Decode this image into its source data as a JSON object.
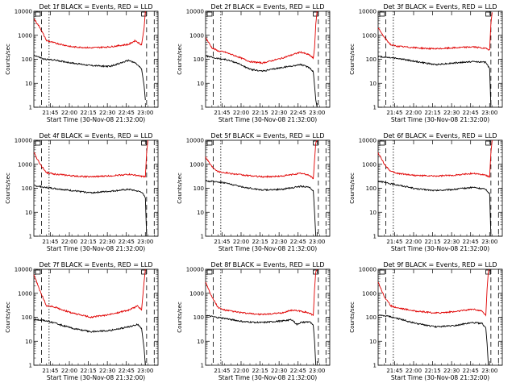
{
  "chart_data": [
    {
      "type": "line",
      "title": "Det 1f BLACK = Events, RED = LLD",
      "xlabel": "Start Time (30-Nov-08 21:32:00)",
      "ylabel": "Counts/sec",
      "y_scale": "log",
      "ylim": [
        1,
        10000
      ],
      "y_ticklabels": [
        "1",
        "10",
        "100",
        "1000",
        "10000"
      ],
      "x_ticklabels": [
        "21:45",
        "22:00",
        "22:15",
        "22:30",
        "22:45",
        "23:00"
      ],
      "colors": {
        "events": "#000000",
        "lld": "#e00000"
      },
      "series": [
        {
          "key": "events",
          "x_minutes": [
            0,
            8,
            15,
            30,
            45,
            60,
            75,
            80,
            85,
            87,
            88
          ],
          "values": [
            150,
            100,
            95,
            70,
            55,
            50,
            90,
            70,
            40,
            8,
            2
          ]
        },
        {
          "key": "lld",
          "x_minutes": [
            0,
            5,
            10,
            15,
            30,
            45,
            60,
            75,
            80,
            85,
            87,
            88
          ],
          "values": [
            5000,
            2000,
            600,
            500,
            330,
            300,
            330,
            420,
            600,
            400,
            2000,
            10000
          ]
        }
      ]
    },
    {
      "type": "line",
      "title": "Det 2f BLACK = Events, RED = LLD",
      "xlabel": "Start Time (30-Nov-08 21:32:00)",
      "ylabel": "Counts/sec",
      "y_scale": "log",
      "ylim": [
        1,
        10000
      ],
      "y_ticklabels": [
        "1",
        "10",
        "100",
        "1000",
        "10000"
      ],
      "x_ticklabels": [
        "21:45",
        "22:00",
        "22:15",
        "22:30",
        "22:45",
        "23:00"
      ],
      "colors": {
        "events": "#000000",
        "lld": "#e00000"
      },
      "series": [
        {
          "key": "events",
          "x_minutes": [
            0,
            8,
            15,
            25,
            35,
            45,
            60,
            75,
            82,
            85,
            86,
            87,
            88
          ],
          "values": [
            140,
            110,
            100,
            70,
            38,
            32,
            45,
            60,
            45,
            30,
            8,
            2,
            1
          ]
        },
        {
          "key": "lld",
          "x_minutes": [
            0,
            5,
            10,
            15,
            25,
            35,
            45,
            60,
            75,
            82,
            85,
            86,
            87,
            88
          ],
          "values": [
            800,
            300,
            220,
            200,
            130,
            80,
            70,
            110,
            200,
            150,
            110,
            300,
            3000,
            10000
          ]
        }
      ]
    },
    {
      "type": "line",
      "title": "Det 3f BLACK = Events, RED = LLD",
      "xlabel": "Start Time (30-Nov-08 21:32:00)",
      "ylabel": "Counts/sec",
      "y_scale": "log",
      "ylim": [
        1,
        10000
      ],
      "y_ticklabels": [
        "1",
        "10",
        "100",
        "1000",
        "10000"
      ],
      "x_ticklabels": [
        "21:45",
        "22:00",
        "22:15",
        "22:30",
        "22:45",
        "23:00"
      ],
      "colors": {
        "events": "#000000",
        "lld": "#e00000"
      },
      "series": [
        {
          "key": "events",
          "x_minutes": [
            0,
            8,
            15,
            30,
            45,
            60,
            75,
            85,
            88,
            89
          ],
          "values": [
            130,
            120,
            110,
            80,
            60,
            70,
            80,
            75,
            40,
            1
          ]
        },
        {
          "key": "lld",
          "x_minutes": [
            0,
            5,
            10,
            15,
            30,
            45,
            60,
            75,
            85,
            88,
            89,
            90
          ],
          "values": [
            2000,
            800,
            400,
            350,
            300,
            270,
            300,
            330,
            280,
            250,
            3000,
            9000
          ]
        }
      ]
    },
    {
      "type": "line",
      "title": "Det 4f BLACK = Events, RED = LLD",
      "xlabel": "Start Time (30-Nov-08 21:32:00)",
      "ylabel": "Counts/sec",
      "y_scale": "log",
      "ylim": [
        1,
        10000
      ],
      "y_ticklabels": [
        "1",
        "10",
        "100",
        "1000",
        "10000"
      ],
      "x_ticklabels": [
        "21:45",
        "22:00",
        "22:15",
        "22:30",
        "22:45",
        "23:00"
      ],
      "colors": {
        "events": "#000000",
        "lld": "#e00000"
      },
      "series": [
        {
          "key": "events",
          "x_minutes": [
            0,
            8,
            15,
            30,
            45,
            60,
            75,
            85,
            88,
            89
          ],
          "values": [
            130,
            110,
            100,
            80,
            65,
            75,
            90,
            70,
            40,
            1
          ]
        },
        {
          "key": "lld",
          "x_minutes": [
            0,
            5,
            10,
            15,
            30,
            45,
            60,
            75,
            85,
            88,
            89,
            90
          ],
          "values": [
            3000,
            1000,
            450,
            400,
            330,
            300,
            330,
            380,
            320,
            300,
            3000,
            10000
          ]
        }
      ]
    },
    {
      "type": "line",
      "title": "Det 5f BLACK = Events, RED = LLD",
      "xlabel": "Start Time (30-Nov-08 21:32:00)",
      "ylabel": "Counts/sec",
      "y_scale": "log",
      "ylim": [
        1,
        10000
      ],
      "y_ticklabels": [
        "1",
        "10",
        "100",
        "1000",
        "10000"
      ],
      "x_ticklabels": [
        "21:45",
        "22:00",
        "22:15",
        "22:30",
        "22:45",
        "23:00"
      ],
      "colors": {
        "events": "#000000",
        "lld": "#e00000"
      },
      "series": [
        {
          "key": "events",
          "x_minutes": [
            0,
            8,
            15,
            30,
            45,
            60,
            75,
            82,
            85,
            86,
            87
          ],
          "values": [
            200,
            190,
            170,
            110,
            85,
            90,
            120,
            110,
            80,
            10,
            1
          ]
        },
        {
          "key": "lld",
          "x_minutes": [
            0,
            5,
            10,
            15,
            30,
            45,
            60,
            75,
            82,
            85,
            86,
            87,
            88
          ],
          "values": [
            2000,
            800,
            500,
            450,
            350,
            300,
            320,
            420,
            350,
            250,
            1500,
            8000,
            10000
          ]
        }
      ]
    },
    {
      "type": "line",
      "title": "Det 6f BLACK = Events, RED = LLD",
      "xlabel": "Start Time (30-Nov-08 21:32:00)",
      "ylabel": "Counts/sec",
      "y_scale": "log",
      "ylim": [
        1,
        10000
      ],
      "y_ticklabels": [
        "1",
        "10",
        "100",
        "1000",
        "10000"
      ],
      "x_ticklabels": [
        "21:45",
        "22:00",
        "22:15",
        "22:30",
        "22:45",
        "23:00"
      ],
      "colors": {
        "events": "#000000",
        "lld": "#e00000"
      },
      "series": [
        {
          "key": "events",
          "x_minutes": [
            0,
            8,
            15,
            30,
            45,
            60,
            75,
            85,
            88,
            89
          ],
          "values": [
            200,
            160,
            140,
            95,
            80,
            90,
            110,
            90,
            60,
            1
          ]
        },
        {
          "key": "lld",
          "x_minutes": [
            0,
            5,
            10,
            15,
            30,
            45,
            60,
            75,
            85,
            88,
            89,
            90
          ],
          "values": [
            3000,
            1000,
            500,
            420,
            340,
            320,
            350,
            420,
            350,
            300,
            3000,
            10000
          ]
        }
      ]
    },
    {
      "type": "line",
      "title": "Det 7f BLACK = Events, RED = LLD",
      "xlabel": "Start Time (30-Nov-08 21:32:00)",
      "ylabel": "Counts/sec",
      "y_scale": "log",
      "ylim": [
        1,
        10000
      ],
      "y_ticklabels": [
        "1",
        "10",
        "100",
        "1000",
        "10000"
      ],
      "x_ticklabels": [
        "21:45",
        "22:00",
        "22:15",
        "22:30",
        "22:45",
        "23:00"
      ],
      "colors": {
        "events": "#000000",
        "lld": "#e00000"
      },
      "series": [
        {
          "key": "events",
          "x_minutes": [
            0,
            8,
            15,
            30,
            45,
            60,
            75,
            82,
            85,
            87,
            88
          ],
          "values": [
            80,
            75,
            60,
            35,
            25,
            28,
            40,
            50,
            35,
            5,
            1
          ]
        },
        {
          "key": "lld",
          "x_minutes": [
            0,
            5,
            10,
            15,
            30,
            45,
            60,
            75,
            82,
            85,
            87,
            88
          ],
          "values": [
            6000,
            1200,
            300,
            280,
            150,
            100,
            130,
            200,
            300,
            200,
            3000,
            10000
          ]
        }
      ]
    },
    {
      "type": "line",
      "title": "Det 8f BLACK = Events, RED = LLD",
      "xlabel": "Start Time (30-Nov-08 21:32:00)",
      "ylabel": "Counts/sec",
      "y_scale": "log",
      "ylim": [
        1,
        10000
      ],
      "y_ticklabels": [
        "1",
        "10",
        "100",
        "1000",
        "10000"
      ],
      "x_ticklabels": [
        "21:45",
        "22:00",
        "22:15",
        "22:30",
        "22:45",
        "23:00"
      ],
      "colors": {
        "events": "#000000",
        "lld": "#e00000"
      },
      "series": [
        {
          "key": "events",
          "x_minutes": [
            0,
            8,
            15,
            30,
            45,
            60,
            68,
            72,
            75,
            82,
            85,
            86,
            87
          ],
          "values": [
            120,
            100,
            90,
            65,
            60,
            70,
            80,
            50,
            60,
            65,
            45,
            10,
            1
          ]
        },
        {
          "key": "lld",
          "x_minutes": [
            0,
            5,
            10,
            15,
            30,
            45,
            60,
            68,
            75,
            82,
            85,
            86,
            87,
            88
          ],
          "values": [
            3000,
            700,
            250,
            200,
            150,
            130,
            150,
            200,
            180,
            150,
            120,
            1500,
            8000,
            10000
          ]
        }
      ]
    },
    {
      "type": "line",
      "title": "Det 9f BLACK = Events, RED = LLD",
      "xlabel": "Start Time (30-Nov-08 21:32:00)",
      "ylabel": "Counts/sec",
      "y_scale": "log",
      "ylim": [
        1,
        10000
      ],
      "y_ticklabels": [
        "1",
        "10",
        "100",
        "1000",
        "10000"
      ],
      "x_ticklabels": [
        "21:45",
        "22:00",
        "22:15",
        "22:30",
        "22:45",
        "23:00"
      ],
      "colors": {
        "events": "#000000",
        "lld": "#e00000"
      },
      "series": [
        {
          "key": "events",
          "x_minutes": [
            0,
            8,
            15,
            30,
            45,
            60,
            75,
            82,
            85,
            86,
            87
          ],
          "values": [
            120,
            110,
            90,
            55,
            40,
            45,
            60,
            55,
            35,
            8,
            1
          ]
        },
        {
          "key": "lld",
          "x_minutes": [
            0,
            5,
            10,
            15,
            30,
            45,
            60,
            75,
            82,
            85,
            86,
            87,
            88
          ],
          "values": [
            3000,
            700,
            300,
            250,
            180,
            150,
            170,
            220,
            180,
            120,
            1500,
            8000,
            10000
          ]
        }
      ]
    }
  ]
}
